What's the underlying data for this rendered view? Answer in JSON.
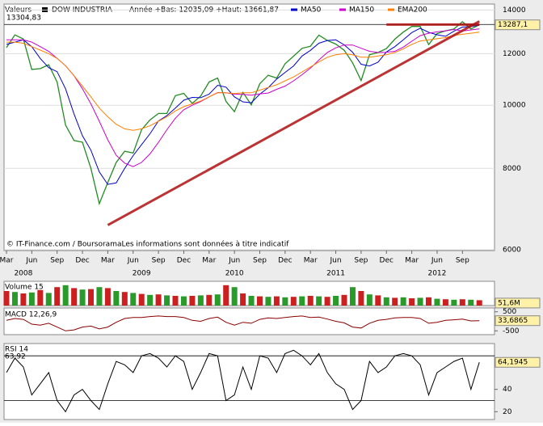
{
  "chart_data": [
    {
      "type": "line",
      "header_label": "Valeurs",
      "subtitle": "Année +Bas: 12035,09 +Haut: 13661,87",
      "log_scale": true,
      "x": [
        "2008-03",
        "2008-04",
        "2008-05",
        "2008-06",
        "2008-07",
        "2008-08",
        "2008-09",
        "2008-10",
        "2008-11",
        "2008-12",
        "2009-01",
        "2009-02",
        "2009-03",
        "2009-04",
        "2009-05",
        "2009-06",
        "2009-07",
        "2009-08",
        "2009-09",
        "2009-10",
        "2009-11",
        "2009-12",
        "2010-01",
        "2010-02",
        "2010-03",
        "2010-04",
        "2010-05",
        "2010-06",
        "2010-07",
        "2010-08",
        "2010-09",
        "2010-10",
        "2010-11",
        "2010-12",
        "2011-01",
        "2011-02",
        "2011-03",
        "2011-04",
        "2011-05",
        "2011-06",
        "2011-07",
        "2011-08",
        "2011-09",
        "2011-10",
        "2011-11",
        "2011-12",
        "2012-01",
        "2012-02",
        "2012-03",
        "2012-04",
        "2012-05",
        "2012-06",
        "2012-07",
        "2012-08",
        "2012-09",
        "2012-10",
        "2012-11"
      ],
      "series": [
        {
          "name": "DOW INDUSTRIA",
          "color": "#228b22",
          "values": [
            12260,
            12820,
            12640,
            11350,
            11380,
            11540,
            10850,
            9325,
            8830,
            8776,
            8000,
            7062,
            7609,
            8168,
            8500,
            8447,
            9172,
            9496,
            9712,
            9713,
            10344,
            10428,
            10067,
            10325,
            10857,
            11009,
            10137,
            9774,
            10466,
            10015,
            10788,
            11118,
            11006,
            11578,
            11892,
            12226,
            12320,
            12811,
            12570,
            12414,
            12143,
            11614,
            10913,
            11955,
            12046,
            12218,
            12633,
            12952,
            13212,
            13214,
            12393,
            12880,
            13009,
            13091,
            13437,
            13096,
            13287
          ]
        },
        {
          "name": "MA50",
          "color": "#0000cc",
          "values": [
            12400,
            12500,
            12600,
            12300,
            11800,
            11420,
            11260,
            10600,
            9700,
            8980,
            8530,
            7900,
            7560,
            7600,
            8000,
            8370,
            8700,
            9040,
            9460,
            9640,
            9900,
            10180,
            10280,
            10270,
            10400,
            10730,
            10660,
            10300,
            10120,
            10090,
            10400,
            10640,
            10970,
            11230,
            11490,
            11900,
            12140,
            12450,
            12570,
            12600,
            12380,
            12060,
            11560,
            11490,
            11640,
            12070,
            12300,
            12600,
            12930,
            13130,
            12940,
            12830,
            12760,
            12990,
            13180,
            13210,
            13270
          ]
        },
        {
          "name": "MA150",
          "color": "#cc00cc",
          "values": [
            12600,
            12600,
            12600,
            12500,
            12300,
            12100,
            11800,
            11500,
            11100,
            10600,
            10050,
            9450,
            8850,
            8380,
            8150,
            8050,
            8170,
            8420,
            8770,
            9170,
            9550,
            9840,
            10000,
            10130,
            10300,
            10460,
            10450,
            10400,
            10390,
            10360,
            10410,
            10440,
            10580,
            10700,
            10900,
            11140,
            11400,
            11730,
            12050,
            12250,
            12370,
            12370,
            12230,
            12100,
            12050,
            12060,
            12100,
            12280,
            12540,
            12790,
            12900,
            12960,
            13010,
            13070,
            13000,
            13050,
            13100
          ]
        },
        {
          "name": "EMA200",
          "color": "#ff8000",
          "values": [
            12500,
            12500,
            12450,
            12300,
            12150,
            12000,
            11800,
            11500,
            11100,
            10700,
            10300,
            9900,
            9600,
            9350,
            9200,
            9150,
            9200,
            9300,
            9450,
            9600,
            9800,
            9950,
            10050,
            10150,
            10300,
            10450,
            10450,
            10420,
            10450,
            10450,
            10550,
            10650,
            10750,
            10900,
            11050,
            11250,
            11450,
            11650,
            11850,
            11950,
            12000,
            11950,
            11850,
            11850,
            11900,
            11950,
            12050,
            12200,
            12400,
            12550,
            12600,
            12650,
            12700,
            12800,
            12850,
            12900,
            12950
          ]
        }
      ],
      "ylim": [
        6000,
        14300
      ],
      "yticks": [
        6000,
        8000,
        10000,
        12000,
        14000
      ],
      "xticks": [
        {
          "value": "2008-03",
          "label": "Mar"
        },
        {
          "value": "2008-06",
          "label": "Jun"
        },
        {
          "value": "2008-09",
          "label": "Sep"
        },
        {
          "value": "2008-12",
          "label": "Dec"
        },
        {
          "value": "2009-03",
          "label": "Mar"
        },
        {
          "value": "2009-06",
          "label": "Jun"
        },
        {
          "value": "2009-09",
          "label": "Sep"
        },
        {
          "value": "2009-12",
          "label": "Dec"
        },
        {
          "value": "2010-03",
          "label": "Mar"
        },
        {
          "value": "2010-06",
          "label": "Jun"
        },
        {
          "value": "2010-09",
          "label": "Sep"
        },
        {
          "value": "2010-12",
          "label": "Dec"
        },
        {
          "value": "2011-03",
          "label": "Mar"
        },
        {
          "value": "2011-06",
          "label": "Jun"
        },
        {
          "value": "2011-09",
          "label": "Sep"
        },
        {
          "value": "2011-12",
          "label": "Dec"
        },
        {
          "value": "2012-03",
          "label": "Mar"
        },
        {
          "value": "2012-06",
          "label": "Jun"
        },
        {
          "value": "2012-09",
          "label": "Sep"
        }
      ],
      "years": [
        {
          "value": "2008-05",
          "label": "2008"
        },
        {
          "value": "2009-07",
          "label": "2009"
        },
        {
          "value": "2010-06",
          "label": "2010"
        },
        {
          "value": "2011-06",
          "label": "2011"
        },
        {
          "value": "2012-06",
          "label": "2012"
        }
      ],
      "levels": [
        {
          "value": 13304.83,
          "label": "13304,83"
        }
      ],
      "last_label": {
        "value": 13287.1,
        "label": "13287,1"
      },
      "trendlines": [
        {
          "color": "#b01010",
          "x": [
            "2009-03",
            "2012-11"
          ],
          "y": [
            6547,
            13450
          ]
        },
        {
          "color": "#b01010",
          "x": [
            "2011-12",
            "2012-11"
          ],
          "y": [
            13300,
            13300
          ]
        }
      ],
      "source": "© IT-Finance.com / BoursoramaLes informations sont données à titre indicatif"
    },
    {
      "type": "bar",
      "title": "Volume 15",
      "color": "#cc2020",
      "values": [
        300,
        280,
        250,
        270,
        320,
        260,
        380,
        420,
        360,
        330,
        340,
        380,
        360,
        300,
        280,
        260,
        240,
        220,
        230,
        210,
        200,
        190,
        200,
        210,
        220,
        230,
        420,
        380,
        250,
        200,
        190,
        180,
        190,
        170,
        180,
        190,
        200,
        190,
        180,
        200,
        220,
        380,
        300,
        230,
        210,
        170,
        160,
        170,
        150,
        160,
        170,
        140,
        130,
        120,
        130,
        120,
        110
      ],
      "ylim": [
        0,
        500
      ],
      "last_label": {
        "value": 51.6,
        "label": "51,6M"
      }
    },
    {
      "type": "line",
      "title": "MACD 12,26,9",
      "color": "#8b0000",
      "values": [
        50,
        150,
        100,
        -150,
        -200,
        -100,
        -300,
        -500,
        -450,
        -300,
        -250,
        -400,
        -300,
        -50,
        150,
        200,
        200,
        250,
        280,
        250,
        250,
        200,
        50,
        0,
        150,
        220,
        -50,
        -200,
        -50,
        -100,
        100,
        180,
        150,
        200,
        250,
        280,
        200,
        220,
        120,
        0,
        -80,
        -300,
        -350,
        -100,
        50,
        100,
        180,
        200,
        200,
        150,
        -100,
        -50,
        50,
        80,
        120,
        20,
        33.6865
      ],
      "ylim": [
        -700,
        700
      ],
      "yticks": [
        -500,
        500
      ],
      "last_label": {
        "value": 33.6865,
        "label": "33,6865"
      }
    },
    {
      "type": "line",
      "title": "RSI 14",
      "color": "#000000",
      "values": [
        55,
        68,
        60,
        35,
        45,
        55,
        30,
        20,
        35,
        40,
        30,
        22,
        45,
        65,
        62,
        55,
        70,
        72,
        68,
        60,
        70,
        65,
        40,
        55,
        72,
        70,
        30,
        35,
        60,
        40,
        70,
        68,
        55,
        72,
        75,
        70,
        62,
        72,
        55,
        45,
        40,
        22,
        30,
        65,
        55,
        60,
        70,
        72,
        70,
        62,
        35,
        55,
        60,
        65,
        68,
        40,
        64.1945
      ],
      "ylim": [
        13,
        81
      ],
      "yticks": [
        20,
        40
      ],
      "levels": [
        30,
        70
      ],
      "max_label": {
        "value": 63.92,
        "label": "63,92"
      },
      "last_label": {
        "value": 64.1945,
        "label": "64,1945"
      }
    }
  ]
}
